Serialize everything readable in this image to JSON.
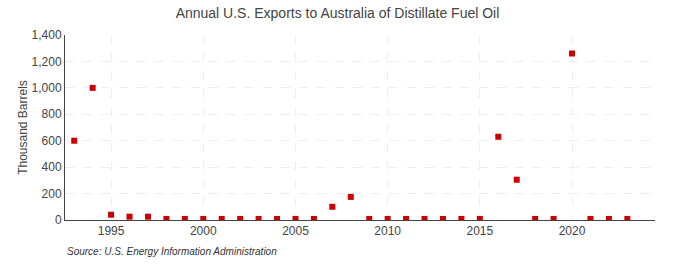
{
  "chart_data": {
    "type": "scatter",
    "title": "Annual U.S. Exports to Australia of Distillate Fuel Oil",
    "ylabel": "Thousand Barrels",
    "annotations": [
      "Source: U.S. Energy Information Administration"
    ],
    "x": [
      1993,
      1994,
      1995,
      1996,
      1997,
      1998,
      1999,
      2000,
      2001,
      2002,
      2003,
      2004,
      2005,
      2006,
      2007,
      2008,
      2009,
      2010,
      2011,
      2012,
      2013,
      2014,
      2015,
      2016,
      2017,
      2018,
      2019,
      2020,
      2021,
      2022,
      2023
    ],
    "values": [
      600,
      1000,
      40,
      25,
      25,
      8,
      8,
      8,
      8,
      8,
      8,
      8,
      8,
      8,
      100,
      175,
      8,
      8,
      8,
      8,
      8,
      8,
      8,
      630,
      305,
      8,
      8,
      1260,
      8,
      8,
      8
    ],
    "color": "#cc0000",
    "marker": "square",
    "xlim": [
      1992.5,
      2024.5
    ],
    "xticks": [
      1995,
      2000,
      2005,
      2010,
      2015,
      2020
    ],
    "ylim": [
      0,
      1400
    ],
    "yticks": [
      0,
      200,
      400,
      600,
      800,
      {
        "value": 1000,
        "label": "1,000"
      },
      {
        "value": 1200,
        "label": "1,200"
      },
      {
        "value": 1400,
        "label": "1,400"
      }
    ],
    "grid": true
  }
}
